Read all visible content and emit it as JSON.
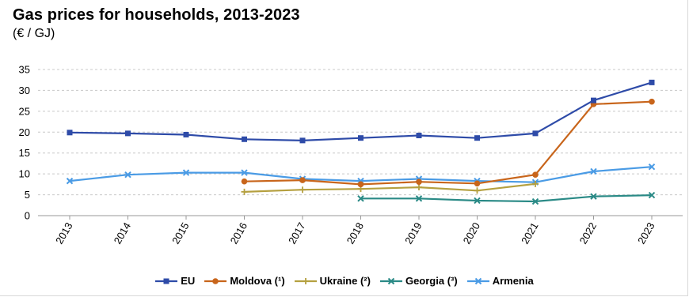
{
  "title": "Gas prices for households, 2013-2023",
  "subtitle": "(€ / GJ)",
  "chart_data": {
    "type": "line",
    "title": "Gas prices for households, 2013-2023",
    "subtitle": "(€ / GJ)",
    "xlabel": "",
    "ylabel": "",
    "x": [
      "2013",
      "2014",
      "2015",
      "2016",
      "2017",
      "2018",
      "2019",
      "2020",
      "2021",
      "2022",
      "2023"
    ],
    "ylim": [
      0,
      35
    ],
    "yticks": [
      0,
      5,
      10,
      15,
      20,
      25,
      30,
      35
    ],
    "grid": "horizontal dashed",
    "legend_position": "bottom",
    "series": [
      {
        "name": "EU",
        "color": "#2E4BA8",
        "marker": "square",
        "values": [
          19.9,
          19.7,
          19.4,
          18.3,
          18.0,
          18.6,
          19.2,
          18.6,
          19.7,
          27.6,
          31.9
        ]
      },
      {
        "name": "Moldova (¹)",
        "color": "#C8651B",
        "marker": "circle",
        "values": [
          null,
          null,
          null,
          8.2,
          8.5,
          7.5,
          8.1,
          7.7,
          9.8,
          26.7,
          27.3
        ]
      },
      {
        "name": "Ukraine (²)",
        "color": "#B5A040",
        "marker": "plus",
        "values": [
          null,
          null,
          null,
          5.7,
          6.2,
          6.4,
          6.8,
          6.0,
          7.6,
          null,
          null
        ]
      },
      {
        "name": "Georgia (³)",
        "color": "#2A8A86",
        "marker": "x",
        "values": [
          null,
          null,
          null,
          null,
          null,
          4.1,
          4.1,
          3.6,
          3.4,
          4.6,
          4.9
        ]
      },
      {
        "name": "Armenia",
        "color": "#4A9BE5",
        "marker": "x",
        "values": [
          8.3,
          9.8,
          10.3,
          10.3,
          8.8,
          8.3,
          8.8,
          8.3,
          8.0,
          10.6,
          11.7
        ]
      }
    ]
  }
}
